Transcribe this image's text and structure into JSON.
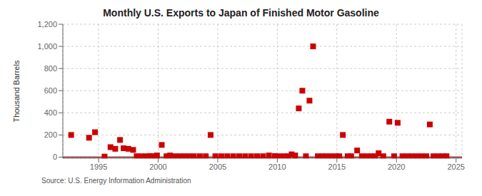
{
  "chart_data": {
    "type": "scatter",
    "title": "Monthly U.S. Exports to Japan of Finished Motor Gasoline",
    "y_label": "Thousand Barrels",
    "annotations": [
      "Source: U.S. Energy Information Administration"
    ],
    "color": "#cc0000",
    "marker": "square",
    "grid": true,
    "baseline": {
      "y": 0,
      "color": "#8b0000"
    },
    "xlim": [
      1992.0,
      2025.5
    ],
    "ylim": [
      -10,
      1200
    ],
    "xticks": [
      1995,
      2000,
      2005,
      2010,
      2015,
      2020,
      2025
    ],
    "yticks": [
      0,
      200,
      400,
      600,
      800,
      {
        "value": 1000,
        "label": "1,000"
      },
      {
        "value": 1200,
        "label": "1,200"
      }
    ],
    "x": [
      1992.7,
      1994.2,
      1994.7,
      1995.5,
      1996.0,
      1996.4,
      1996.8,
      1997.1,
      1997.5,
      1997.9,
      1998.2,
      1998.6,
      1999.0,
      1999.3,
      1999.6,
      1999.9,
      2000.3,
      2000.7,
      2001.0,
      2001.4,
      2001.8,
      2002.2,
      2002.6,
      2003.0,
      2003.5,
      2004.0,
      2004.4,
      2004.8,
      2005.3,
      2005.8,
      2006.3,
      2006.8,
      2007.3,
      2007.8,
      2008.3,
      2008.8,
      2009.3,
      2009.8,
      2010.2,
      2010.6,
      2010.9,
      2011.2,
      2011.5,
      2011.8,
      2012.1,
      2012.4,
      2012.7,
      2013.0,
      2013.4,
      2013.8,
      2014.1,
      2014.5,
      2014.9,
      2015.2,
      2015.5,
      2015.9,
      2016.2,
      2016.7,
      2017.1,
      2017.5,
      2017.9,
      2018.2,
      2018.5,
      2018.9,
      2019.4,
      2019.8,
      2020.1,
      2020.5,
      2020.9,
      2021.3,
      2021.7,
      2022.1,
      2022.5,
      2022.8,
      2023.1,
      2023.5,
      2023.9,
      2024.2
    ],
    "values": [
      200,
      175,
      225,
      5,
      90,
      75,
      155,
      80,
      75,
      65,
      8,
      8,
      8,
      10,
      8,
      15,
      110,
      8,
      15,
      8,
      8,
      8,
      8,
      8,
      8,
      8,
      200,
      8,
      8,
      8,
      8,
      8,
      8,
      8,
      8,
      8,
      15,
      10,
      8,
      8,
      8,
      25,
      15,
      440,
      600,
      8,
      510,
      1000,
      8,
      8,
      8,
      8,
      8,
      8,
      200,
      8,
      8,
      60,
      8,
      8,
      8,
      8,
      35,
      8,
      320,
      8,
      310,
      8,
      8,
      8,
      8,
      8,
      8,
      295,
      8,
      8,
      8,
      8
    ]
  }
}
